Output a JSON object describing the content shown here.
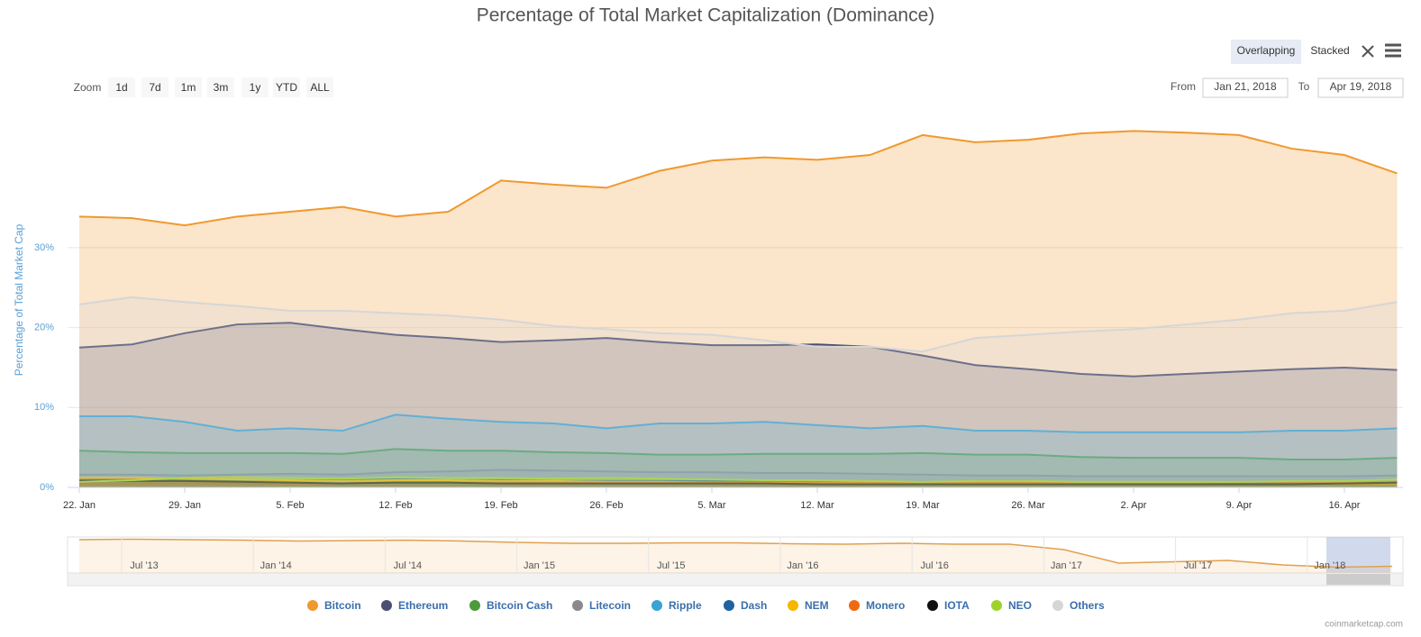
{
  "chart_data": {
    "type": "area",
    "mode": "overlapping",
    "title": "Percentage of Total Market Capitalization (Dominance)",
    "y_label": "Percentage of Total Market Cap",
    "categories": [
      "22. Jan",
      null,
      "29. Jan",
      null,
      "5. Feb",
      null,
      "12. Feb",
      null,
      "19. Feb",
      null,
      "26. Feb",
      null,
      "5. Mar",
      null,
      "12. Mar",
      null,
      "19. Mar",
      null,
      "26. Mar",
      null,
      "2. Apr",
      null,
      "9. Apr",
      null,
      "16. Apr",
      null
    ],
    "ylim": [
      0,
      46
    ],
    "yticks": [
      {
        "value": 0,
        "label": "0%"
      },
      {
        "value": 10,
        "label": "10%"
      },
      {
        "value": 20,
        "label": "20%"
      },
      {
        "value": 30,
        "label": "30%"
      }
    ],
    "grid": true,
    "series": [
      {
        "name": "Bitcoin",
        "color": "#f0992e",
        "values": [
          33.9,
          33.7,
          32.8,
          33.9,
          34.5,
          35.1,
          33.9,
          34.5,
          38.4,
          37.9,
          37.5,
          39.6,
          40.9,
          41.3,
          41.0,
          41.6,
          44.1,
          43.2,
          43.5,
          44.3,
          44.6,
          44.4,
          44.1,
          42.4,
          41.6,
          39.3
        ]
      },
      {
        "name": "Ethereum",
        "color": "#4a4e72",
        "values": [
          17.5,
          17.9,
          19.3,
          20.4,
          20.6,
          19.8,
          19.1,
          18.7,
          18.2,
          18.4,
          18.7,
          18.2,
          17.8,
          17.8,
          17.9,
          17.6,
          16.5,
          15.3,
          14.8,
          14.2,
          13.9,
          14.2,
          14.5,
          14.8,
          15.0,
          14.7
        ]
      },
      {
        "name": "Bitcoin Cash",
        "color": "#4c9a3c",
        "values": [
          4.6,
          4.4,
          4.3,
          4.3,
          4.3,
          4.2,
          4.8,
          4.6,
          4.6,
          4.4,
          4.3,
          4.1,
          4.1,
          4.2,
          4.2,
          4.2,
          4.3,
          4.1,
          4.1,
          3.8,
          3.7,
          3.7,
          3.7,
          3.5,
          3.5,
          3.7
        ]
      },
      {
        "name": "Litecoin",
        "color": "#8a8a8a",
        "values": [
          1.6,
          1.6,
          1.5,
          1.6,
          1.7,
          1.6,
          1.9,
          2.0,
          2.2,
          2.1,
          2.0,
          1.9,
          1.9,
          1.8,
          1.8,
          1.7,
          1.6,
          1.5,
          1.5,
          1.4,
          1.4,
          1.4,
          1.4,
          1.4,
          1.4,
          1.5
        ]
      },
      {
        "name": "Ripple",
        "color": "#3aa3d4",
        "values": [
          8.9,
          8.9,
          8.2,
          7.1,
          7.4,
          7.1,
          9.1,
          8.6,
          8.2,
          8.0,
          7.4,
          8.0,
          8.0,
          8.2,
          7.8,
          7.4,
          7.7,
          7.1,
          7.1,
          6.9,
          6.9,
          6.9,
          6.9,
          7.1,
          7.1,
          7.4
        ]
      },
      {
        "name": "Dash",
        "color": "#1c63a0",
        "values": [
          1.0,
          1.0,
          0.9,
          0.9,
          0.9,
          0.9,
          1.0,
          0.9,
          0.9,
          0.8,
          0.8,
          0.8,
          0.8,
          0.7,
          0.7,
          0.7,
          0.7,
          0.6,
          0.6,
          0.6,
          0.6,
          0.6,
          0.6,
          0.6,
          0.6,
          0.6
        ]
      },
      {
        "name": "NEM",
        "color": "#f5b700",
        "values": [
          1.2,
          1.2,
          1.1,
          1.0,
          0.9,
          0.8,
          0.9,
          0.9,
          0.8,
          0.8,
          0.7,
          0.7,
          0.6,
          0.6,
          0.6,
          0.6,
          0.5,
          0.5,
          0.5,
          0.5,
          0.4,
          0.4,
          0.4,
          0.4,
          0.4,
          0.4
        ]
      },
      {
        "name": "Monero",
        "color": "#ee6a12",
        "values": [
          0.5,
          0.5,
          0.5,
          0.5,
          0.5,
          0.5,
          0.6,
          0.6,
          0.6,
          0.6,
          0.6,
          0.6,
          0.6,
          0.6,
          0.6,
          0.6,
          0.6,
          0.6,
          0.6,
          0.6,
          0.6,
          0.6,
          0.7,
          0.7,
          0.7,
          0.7
        ]
      },
      {
        "name": "IOTA",
        "color": "#111111",
        "values": [
          0.8,
          0.8,
          0.8,
          0.7,
          0.6,
          0.5,
          0.6,
          0.6,
          0.5,
          0.5,
          0.5,
          0.5,
          0.5,
          0.5,
          0.4,
          0.4,
          0.4,
          0.4,
          0.4,
          0.4,
          0.4,
          0.4,
          0.4,
          0.4,
          0.5,
          0.6
        ]
      },
      {
        "name": "NEO",
        "color": "#9ed22c",
        "values": [
          0.7,
          0.9,
          1.2,
          1.3,
          1.2,
          1.1,
          1.3,
          1.2,
          1.2,
          1.1,
          1.2,
          1.1,
          1.0,
          0.9,
          0.9,
          0.8,
          0.7,
          0.8,
          0.8,
          0.7,
          0.7,
          0.7,
          0.7,
          0.8,
          0.8,
          1.0
        ]
      },
      {
        "name": "Others",
        "color": "#d6d6d6",
        "values": [
          22.9,
          23.8,
          23.2,
          22.7,
          22.1,
          22.1,
          21.8,
          21.5,
          21.0,
          20.2,
          19.8,
          19.3,
          19.1,
          18.4,
          17.6,
          17.6,
          17.0,
          18.7,
          19.1,
          19.5,
          19.8,
          20.4,
          21.0,
          21.8,
          22.1,
          23.2
        ]
      }
    ],
    "navigator": {
      "labels": [
        "Jul '13",
        "Jan '14",
        "Jul '14",
        "Jan '15",
        "Jul '15",
        "Jan '16",
        "Jul '16",
        "Jan '17",
        "Jul '17",
        "Jan '18"
      ],
      "ylim": [
        20,
        100
      ],
      "values": [
        94,
        95,
        94,
        93,
        91,
        92,
        93,
        91,
        88,
        86,
        86,
        87,
        87,
        85,
        84,
        86,
        84,
        84,
        72,
        42,
        45,
        48,
        38,
        33,
        35
      ]
    }
  },
  "zoom": {
    "label": "Zoom",
    "buttons": [
      "1d",
      "7d",
      "1m",
      "3m",
      "1y",
      "YTD",
      "ALL"
    ]
  },
  "range": {
    "from_label": "From",
    "from": "Jan 21, 2018",
    "to_label": "To",
    "to": "Apr 19, 2018"
  },
  "view_buttons": [
    "Overlapping",
    "Stacked"
  ],
  "credits": "coinmarketcap.com"
}
